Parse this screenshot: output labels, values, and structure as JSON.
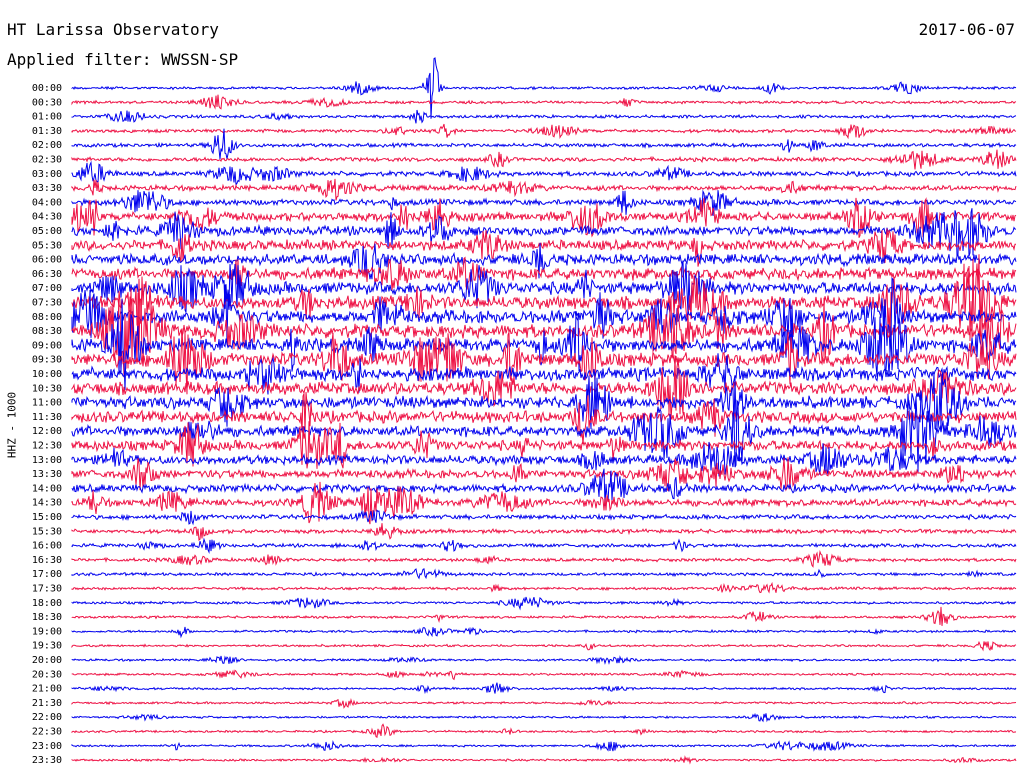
{
  "header": {
    "title": "HT Larissa Observatory",
    "date": "2017-06-07",
    "filter": "Applied filter: WWSSN-SP"
  },
  "chart_data": {
    "type": "line",
    "ylabel": "HHZ - 1000",
    "time_labels": [
      "00:00",
      "00:30",
      "01:00",
      "01:30",
      "02:00",
      "02:30",
      "03:00",
      "03:30",
      "04:00",
      "04:30",
      "05:00",
      "05:30",
      "06:00",
      "06:30",
      "07:00",
      "07:30",
      "08:00",
      "08:30",
      "09:00",
      "09:30",
      "10:00",
      "10:30",
      "11:00",
      "11:30",
      "12:00",
      "12:30",
      "13:00",
      "13:30",
      "14:00",
      "14:30",
      "15:00",
      "15:30",
      "16:00",
      "16:30",
      "17:00",
      "17:30",
      "18:00",
      "18:30",
      "19:00",
      "19:30",
      "20:00",
      "20:30",
      "21:00",
      "21:30",
      "22:00",
      "22:30",
      "23:00",
      "23:30"
    ],
    "colors": [
      "#0000ee",
      "#ee1144"
    ],
    "grid": false
  }
}
